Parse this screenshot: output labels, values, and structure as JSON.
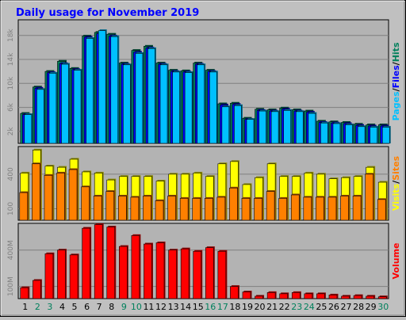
{
  "chart_data": {
    "type": "bar",
    "title": "Daily usage for November 2019",
    "categories": [
      "1",
      "2",
      "3",
      "4",
      "5",
      "6",
      "7",
      "8",
      "9",
      "10",
      "11",
      "12",
      "13",
      "14",
      "15",
      "16",
      "17",
      "18",
      "19",
      "20",
      "21",
      "22",
      "23",
      "24",
      "25",
      "26",
      "27",
      "28",
      "29",
      "30"
    ],
    "weekend_days": [
      "2",
      "3",
      "9",
      "10",
      "16",
      "17",
      "23",
      "24",
      "30"
    ],
    "colors": {
      "hits": "#00805c",
      "files": "#0000ff",
      "pages": "#00c0ff",
      "visits": "#ffff00",
      "sites": "#ff8000",
      "volume": "#ff0000",
      "title": "#0000ff",
      "weekend": "#00805c",
      "weekday": "#000000",
      "panel": "#b3b3b3",
      "grid": "#808080"
    },
    "panels": [
      {
        "name": "hits-files-pages",
        "ylim": [
          0,
          20600
        ],
        "ticks": [
          {
            "value": 2000,
            "label": "2k"
          },
          {
            "value": 6000,
            "label": "6k"
          },
          {
            "value": 10000,
            "label": "10k"
          },
          {
            "value": 14000,
            "label": "14k"
          },
          {
            "value": 18000,
            "label": "18k"
          }
        ],
        "label_parts": [
          {
            "text": "Pages",
            "color": "#00c0ff"
          },
          {
            "text": "/",
            "color": "#000000"
          },
          {
            "text": "Files",
            "color": "#0000ff"
          },
          {
            "text": "/",
            "color": "#000000"
          },
          {
            "text": "Hits",
            "color": "#00805c"
          }
        ],
        "series": [
          {
            "key": "hits",
            "values": [
              5000,
              9400,
              12000,
              13700,
              12500,
              17900,
              18500,
              18200,
              13400,
              15500,
              16200,
              13400,
              12200,
              12100,
              13400,
              12200,
              6600,
              6700,
              4200,
              5700,
              5600,
              5900,
              5600,
              5400,
              3700,
              3600,
              3500,
              3200,
              3100,
              3100
            ]
          },
          {
            "key": "files",
            "values": [
              4800,
              9200,
              11800,
              13300,
              12300,
              17700,
              18300,
              17900,
              13200,
              15200,
              15900,
              13200,
              12000,
              11900,
              13200,
              12000,
              6400,
              6500,
              4000,
              5500,
              5400,
              5700,
              5400,
              5200,
              3500,
              3400,
              3300,
              3000,
              2900,
              2900
            ]
          },
          {
            "key": "pages",
            "values": [
              4800,
              9000,
              11700,
              13200,
              12200,
              17500,
              18800,
              17800,
              13100,
              15000,
              15800,
              13100,
              11900,
              11800,
              13100,
              11900,
              6100,
              6300,
              4000,
              5400,
              5300,
              5500,
              5300,
              5000,
              3400,
              3300,
              3100,
              2800,
              2700,
              2700
            ]
          }
        ]
      },
      {
        "name": "visits-sites",
        "ylim": [
          0,
          640
        ],
        "ticks": [
          {
            "value": 100,
            "label": "100"
          },
          {
            "value": 400,
            "label": "400"
          }
        ],
        "label_parts": [
          {
            "text": "Visits",
            "color": "#ffff00"
          },
          {
            "text": "/",
            "color": "#000000"
          },
          {
            "text": "Sites",
            "color": "#ff8000"
          }
        ],
        "series": [
          {
            "key": "visits",
            "values": [
              410,
              610,
              470,
              460,
              530,
              420,
              410,
              350,
              380,
              380,
              380,
              340,
              400,
              400,
              410,
              380,
              490,
              510,
              310,
              370,
              490,
              380,
              380,
              410,
              400,
              360,
              370,
              380,
              460,
              330
            ]
          },
          {
            "key": "sites",
            "values": [
              240,
              490,
              390,
              410,
              440,
              290,
              210,
              250,
              210,
              200,
              210,
              170,
              210,
              190,
              190,
              190,
              200,
              280,
              190,
              190,
              250,
              190,
              220,
              200,
              200,
              200,
              210,
              210,
              400,
              180
            ]
          }
        ]
      },
      {
        "name": "volume",
        "ylim": [
          0,
          620
        ],
        "ticks": [
          {
            "value": 100,
            "label": "100M"
          },
          {
            "value": 400,
            "label": "400M"
          }
        ],
        "label_parts": [
          {
            "text": "Volume",
            "color": "#ff0000"
          }
        ],
        "series": [
          {
            "key": "volume",
            "values": [
              90,
              150,
              370,
              400,
              360,
              580,
              610,
              590,
              430,
              520,
              450,
              460,
              400,
              410,
              390,
              420,
              390,
              100,
              55,
              20,
              50,
              40,
              50,
              40,
              40,
              30,
              20,
              25,
              20,
              15
            ]
          }
        ]
      }
    ]
  }
}
